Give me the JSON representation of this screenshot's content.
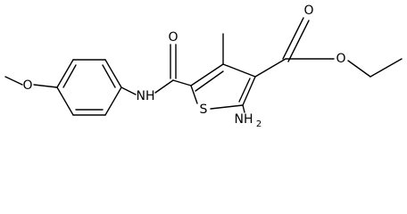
{
  "atoms": {
    "methoxy_o": "O",
    "amide_nh": "NH",
    "amide_o": "O",
    "ring_s": "S",
    "amino_n": "NH",
    "amino_sub": "2",
    "ester_carbonyl_o": "O",
    "ester_o": "O"
  }
}
